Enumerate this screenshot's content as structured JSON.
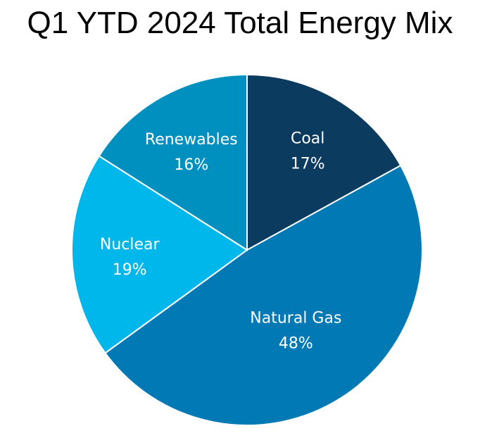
{
  "chart_data": {
    "type": "pie",
    "title": "Q1 YTD 2024 Total Energy Mix",
    "categories": [
      "Coal",
      "Natural Gas",
      "Nuclear",
      "Renewables"
    ],
    "values": [
      17,
      48,
      19,
      16
    ],
    "labels": [
      "17%",
      "48%",
      "19%",
      "16%"
    ],
    "colors": [
      "#0b3b5e",
      "#0079b5",
      "#00b7ec",
      "#0090bf"
    ],
    "start": "12 o'clock, clockwise",
    "legend": "none (labels on slices)"
  }
}
